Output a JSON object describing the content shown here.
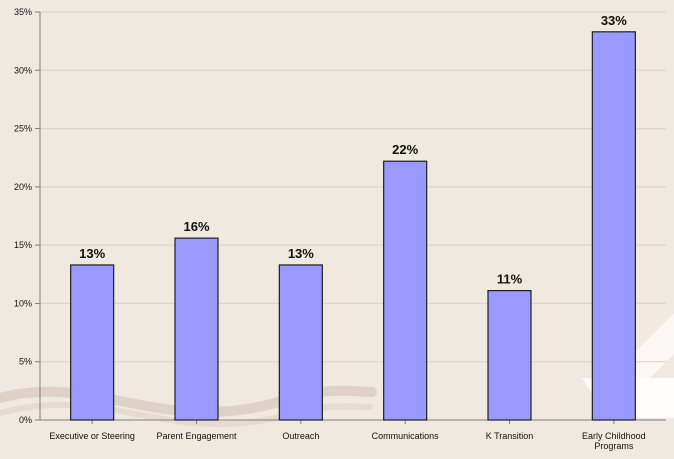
{
  "chart_data": {
    "type": "bar",
    "categories": [
      [
        "Executive or Steering"
      ],
      [
        "Parent Engagement"
      ],
      [
        "Outreach"
      ],
      [
        "Communications"
      ],
      [
        "K Transition"
      ],
      [
        "Early Childhood",
        "Programs"
      ]
    ],
    "values": [
      13.3,
      15.6,
      13.3,
      22.2,
      11.1,
      33.3
    ],
    "data_labels": [
      "13%",
      "16%",
      "13%",
      "22%",
      "11%",
      "33%"
    ],
    "y_ticks": [
      0,
      5,
      10,
      15,
      20,
      25,
      30,
      35
    ],
    "y_tick_labels": [
      "0%",
      "5%",
      "10%",
      "15%",
      "20%",
      "25%",
      "30%",
      "35%"
    ],
    "ylim": [
      0,
      35
    ],
    "grid": true,
    "legend": "none",
    "colors": {
      "bar_fill": "#9999ff",
      "bar_stroke": "#1f1f1f",
      "grid": "#d9d2c7",
      "axis": "#7f7f7f",
      "background": "#efe9df",
      "text": "#111111"
    }
  }
}
